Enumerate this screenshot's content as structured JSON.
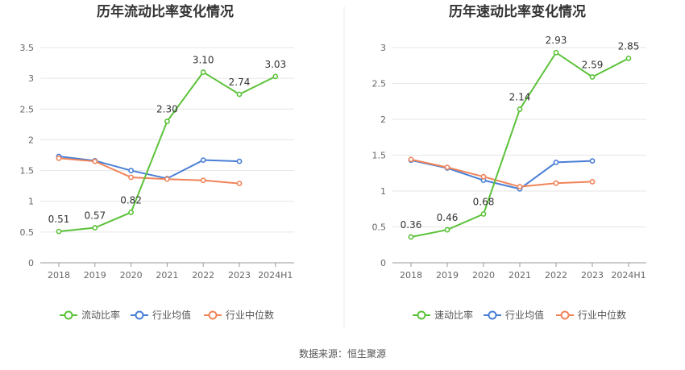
{
  "colors": {
    "main": "#5cc23a",
    "avg": "#4a7fd6",
    "median": "#f0845a",
    "grid": "#e6e6e6",
    "axis": "#999999",
    "divider": "#e8e8e8"
  },
  "source_text": "数据来源：恒生聚源",
  "chart_data": [
    {
      "type": "line",
      "title": "历年流动比率变化情况",
      "categories": [
        "2018",
        "2019",
        "2020",
        "2021",
        "2022",
        "2023",
        "2024H1"
      ],
      "ylim": [
        0,
        3.5
      ],
      "yticks": [
        "0",
        "0.5",
        "1",
        "1.5",
        "2",
        "2.5",
        "3",
        "3.5"
      ],
      "grid": true,
      "legend_position": "bottom",
      "series": [
        {
          "name": "流动比率",
          "key": "main",
          "values": [
            0.51,
            0.57,
            0.82,
            2.3,
            3.1,
            2.74,
            3.03
          ],
          "labels": [
            "0.51",
            "0.57",
            "0.82",
            "2.30",
            "3.10",
            "2.74",
            "3.03"
          ]
        },
        {
          "name": "行业均值",
          "key": "avg",
          "values": [
            1.73,
            1.66,
            1.5,
            1.37,
            1.67,
            1.65,
            null
          ]
        },
        {
          "name": "行业中位数",
          "key": "median",
          "values": [
            1.7,
            1.65,
            1.39,
            1.36,
            1.34,
            1.29,
            null
          ]
        }
      ]
    },
    {
      "type": "line",
      "title": "历年速动比率变化情况",
      "categories": [
        "2018",
        "2019",
        "2020",
        "2021",
        "2022",
        "2023",
        "2024H1"
      ],
      "ylim": [
        0,
        3
      ],
      "yticks": [
        "0",
        "0.5",
        "1",
        "1.5",
        "2",
        "2.5",
        "3"
      ],
      "grid": true,
      "legend_position": "bottom",
      "series": [
        {
          "name": "速动比率",
          "key": "main",
          "values": [
            0.36,
            0.46,
            0.68,
            2.14,
            2.93,
            2.59,
            2.85
          ],
          "labels": [
            "0.36",
            "0.46",
            "0.68",
            "2.14",
            "2.93",
            "2.59",
            "2.85"
          ]
        },
        {
          "name": "行业均值",
          "key": "avg",
          "values": [
            1.43,
            1.32,
            1.15,
            1.03,
            1.4,
            1.42,
            null
          ]
        },
        {
          "name": "行业中位数",
          "key": "median",
          "values": [
            1.44,
            1.33,
            1.2,
            1.06,
            1.11,
            1.13,
            null
          ]
        }
      ]
    }
  ]
}
